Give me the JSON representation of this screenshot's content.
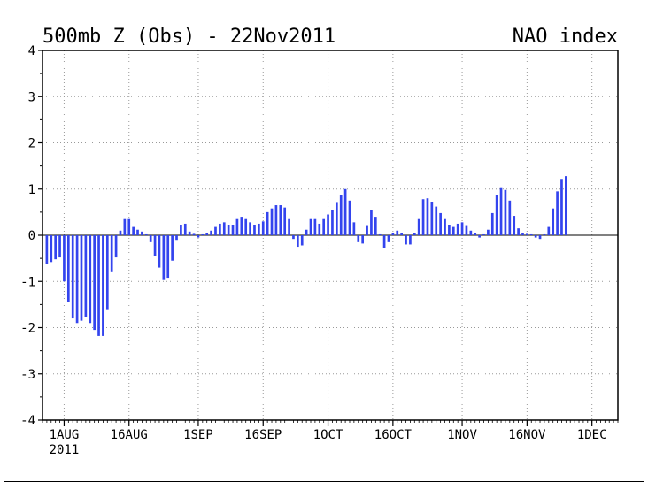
{
  "chart_data": {
    "type": "bar",
    "title": "500mb Z (Obs) - 22Nov2011",
    "title_right": "NAO index",
    "xlabel": "",
    "ylabel": "",
    "ylim": [
      -4,
      4
    ],
    "yticks": [
      "4",
      "3",
      "2",
      "1",
      "0",
      "-1",
      "-2",
      "-3",
      "-4"
    ],
    "ytick_values": [
      4,
      3,
      2,
      1,
      0,
      -1,
      -2,
      -3,
      -4
    ],
    "xticks": [
      {
        "label": "1AUG",
        "sublabel": "2011",
        "day": 0
      },
      {
        "label": "16AUG",
        "day": 15
      },
      {
        "label": "1SEP",
        "day": 31
      },
      {
        "label": "16SEP",
        "day": 46
      },
      {
        "label": "1OCT",
        "day": 61
      },
      {
        "label": "16OCT",
        "day": 76
      },
      {
        "label": "1NOV",
        "day": 92
      },
      {
        "label": "16NOV",
        "day": 107
      },
      {
        "label": "1DEC",
        "day": 122
      }
    ],
    "x_range_days": [
      -5,
      128
    ],
    "grid": true,
    "bar_color": "#3344ee",
    "series": [
      {
        "values": [
          -0.62,
          -0.58,
          -0.52,
          -0.48,
          -1.0,
          -1.45,
          -1.8,
          -1.9,
          -1.85,
          -1.78,
          -1.9,
          -2.05,
          -2.18,
          -2.18,
          -1.62,
          -0.8,
          -0.48,
          0.1,
          0.35,
          0.35,
          0.18,
          0.12,
          0.08,
          0.02,
          -0.15,
          -0.45,
          -0.7,
          -0.97,
          -0.92,
          -0.55,
          -0.1,
          0.22,
          0.25,
          0.08,
          0.03,
          -0.05,
          0.02,
          0.05,
          0.1,
          0.18,
          0.25,
          0.28,
          0.22,
          0.22,
          0.35,
          0.4,
          0.35,
          0.28,
          0.22,
          0.25,
          0.3,
          0.5,
          0.58,
          0.65,
          0.65,
          0.6,
          0.35,
          -0.08,
          -0.25,
          -0.22,
          0.12,
          0.35,
          0.35,
          0.25,
          0.35,
          0.45,
          0.55,
          0.7,
          0.88,
          1.0,
          0.75,
          0.28,
          -0.15,
          -0.18,
          0.2,
          0.55,
          0.4,
          0.02,
          -0.28,
          -0.15,
          0.05,
          0.1,
          0.05,
          -0.2,
          -0.2,
          0.05,
          0.35,
          0.78,
          0.8,
          0.72,
          0.62,
          0.48,
          0.35,
          0.22,
          0.18,
          0.25,
          0.28,
          0.2,
          0.1,
          0.05,
          -0.05,
          0.02,
          0.12,
          0.48,
          0.88,
          1.02,
          0.98,
          0.75,
          0.42,
          0.15,
          0.05,
          0.03,
          0.02,
          -0.05,
          -0.08,
          0.02,
          0.18,
          0.58,
          0.95,
          1.22,
          1.28
        ]
      }
    ]
  }
}
